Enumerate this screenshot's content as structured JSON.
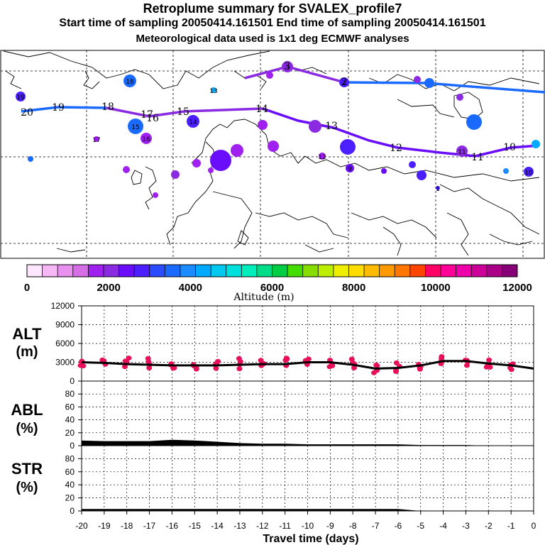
{
  "titles": {
    "main": "Retroplume summary for SVALEX_profile7",
    "sampling": "Start time of sampling 20050414.161501     End time of sampling 20050414.161501",
    "met": "Meteorological data used is 1x1 deg ECMWF analyses"
  },
  "colorbar": {
    "ticks": [
      "0",
      "2000",
      "4000",
      "6000",
      "8000",
      "10000",
      "12000"
    ],
    "label": "Altitude (m)",
    "colors": [
      "#ffe6ff",
      "#f5b8f5",
      "#e890ee",
      "#d66ee6",
      "#a020f0",
      "#8a2be2",
      "#6a0dfa",
      "#4b1fff",
      "#2a4bff",
      "#1a6aff",
      "#1a8cff",
      "#00aaff",
      "#00c8ee",
      "#00e0dd",
      "#00eebb",
      "#00dd88",
      "#00cc44",
      "#44dd00",
      "#88dd00",
      "#bbee00",
      "#eeee00",
      "#ffdd00",
      "#ffbb00",
      "#ff9900",
      "#ff7700",
      "#ff4400",
      "#ff0066",
      "#ff0099",
      "#ee00aa",
      "#cc0099",
      "#aa0088",
      "#880077"
    ]
  },
  "map": {
    "trajectory_labels": [
      "20",
      "19",
      "18",
      "17",
      "16",
      "15",
      "14",
      "13",
      "12",
      "11",
      "10",
      "3",
      "2"
    ],
    "cluster_labels": [
      "19",
      "18",
      "13",
      "17",
      "15",
      "14",
      "16",
      "12",
      "11",
      "10",
      "9",
      "3",
      "2",
      "1"
    ]
  },
  "panels": {
    "alt": {
      "label_top": "ALT",
      "label_bottom": "(m)"
    },
    "abl": {
      "label_top": "ABL",
      "label_bottom": "(%)"
    },
    "str": {
      "label_top": "STR",
      "label_bottom": "(%)"
    },
    "xlabel": "Travel time (days)"
  },
  "chart_data": [
    {
      "type": "line",
      "title": "ALT",
      "ylabel": "ALT (m)",
      "xlabel": "Travel time (days)",
      "ylim": [
        0,
        12000
      ],
      "yticks": [
        "0",
        "3000",
        "6000",
        "9000",
        "12000"
      ],
      "xlim": [
        -20,
        0
      ],
      "x": [
        -20,
        -19,
        -18,
        -17,
        -16,
        -15,
        -14,
        -13,
        -12,
        -11,
        -10,
        -9,
        -8,
        -7,
        -6,
        -5,
        -4,
        -3,
        -2,
        -1,
        0
      ],
      "values": [
        3000,
        2900,
        2700,
        2600,
        2500,
        2500,
        2500,
        2600,
        2700,
        2700,
        3000,
        3000,
        2600,
        2000,
        2100,
        2500,
        3200,
        3200,
        2800,
        2500,
        2000
      ],
      "color": "#000000"
    },
    {
      "type": "area",
      "title": "ABL",
      "ylabel": "ABL (%)",
      "ylim": [
        0,
        100
      ],
      "yticks": [
        "0",
        "20",
        "40",
        "60",
        "80"
      ],
      "xlim": [
        -20,
        0
      ],
      "x": [
        -20,
        -19,
        -18,
        -17,
        -16,
        -15,
        -14,
        -13,
        -12,
        -11,
        -10,
        -9,
        -8,
        -7,
        -6,
        -5,
        -4,
        -3,
        -2,
        -1,
        0
      ],
      "values": [
        8,
        7,
        7,
        7,
        9,
        8,
        6,
        4,
        3,
        3,
        2,
        2,
        2,
        2,
        2,
        1,
        1,
        1,
        0,
        0,
        0
      ]
    },
    {
      "type": "area",
      "title": "STR",
      "ylabel": "STR (%)",
      "ylim": [
        0,
        100
      ],
      "yticks": [
        "0",
        "20",
        "40",
        "60",
        "80"
      ],
      "xlim": [
        -20,
        0
      ],
      "x": [
        -20,
        -19,
        -18,
        -17,
        -16,
        -15,
        -14,
        -13,
        -12,
        -11,
        -10,
        -9,
        -8,
        -7,
        -6,
        -5,
        -4,
        -3,
        -2,
        -1,
        0
      ],
      "values": [
        3,
        3,
        3,
        3,
        3,
        3,
        3,
        3,
        3,
        3,
        3,
        3,
        3,
        3,
        3,
        0,
        0,
        0,
        0,
        0,
        0
      ]
    }
  ],
  "xticks": [
    "-20",
    "-19",
    "-18",
    "-17",
    "-16",
    "-15",
    "-14",
    "-13",
    "-12",
    "-11",
    "-10",
    "-9",
    "-8",
    "-7",
    "-6",
    "-5",
    "-4",
    "-3",
    "-2",
    "-1",
    "0"
  ]
}
